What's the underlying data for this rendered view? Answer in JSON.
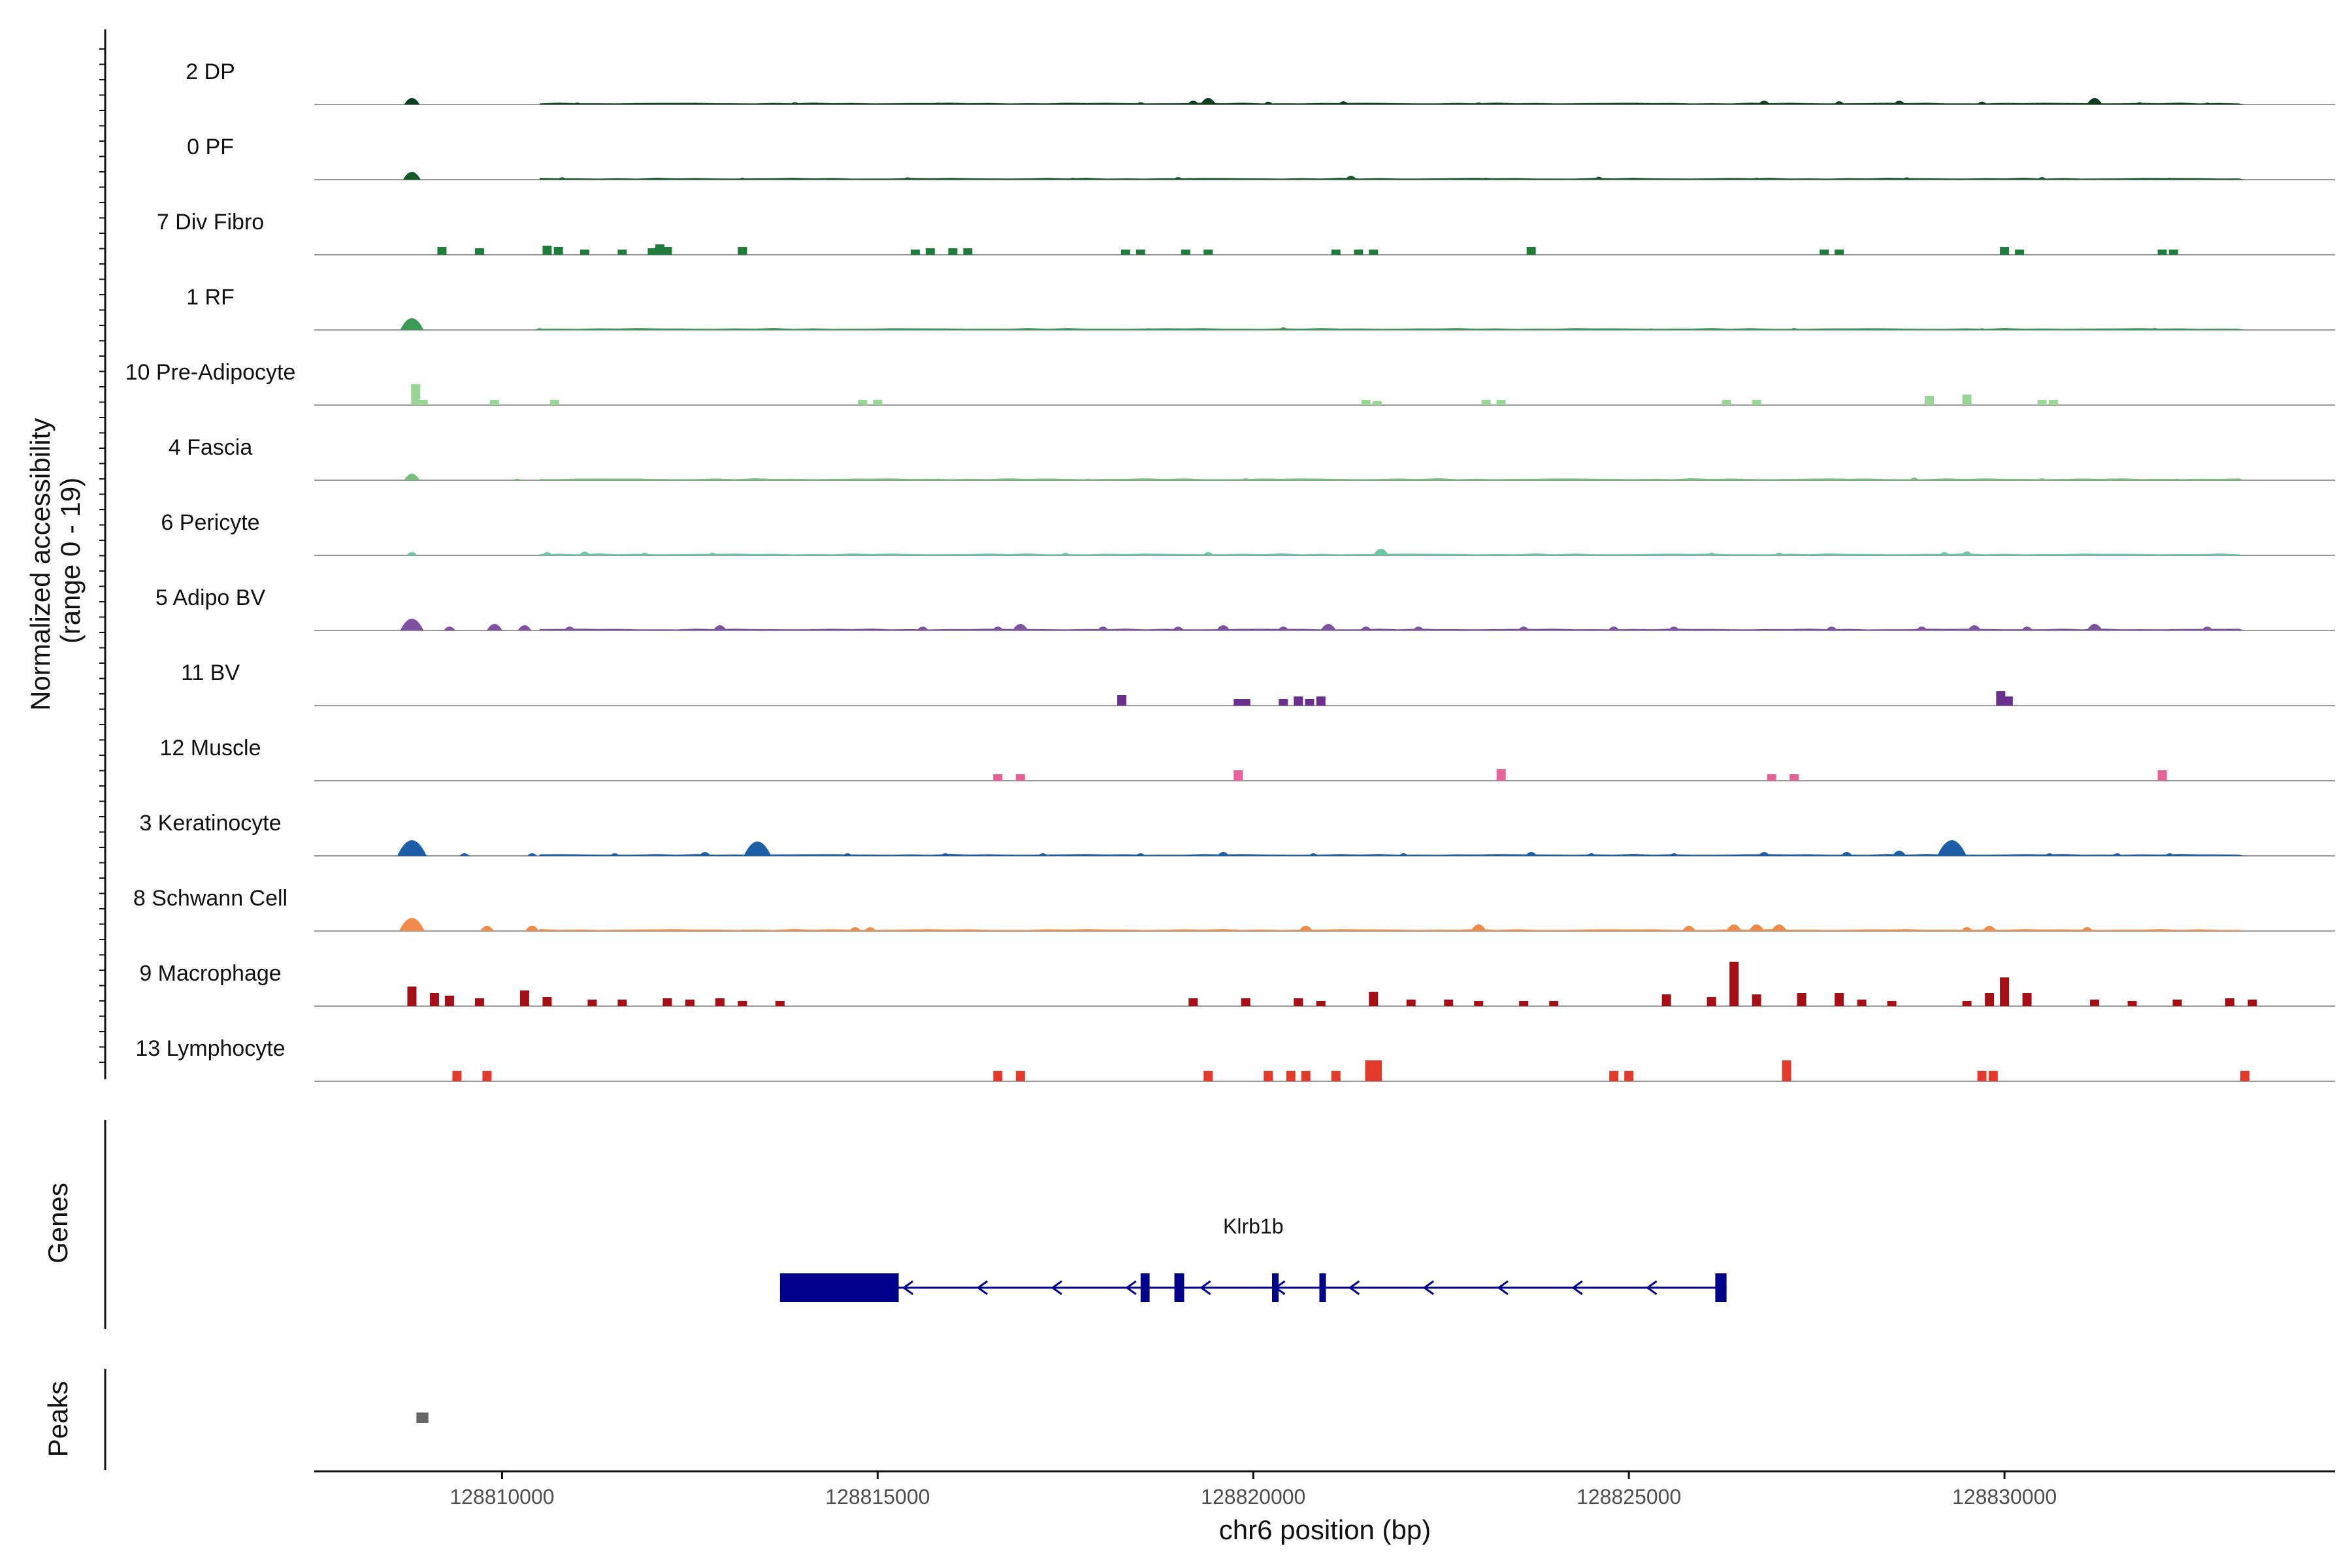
{
  "chart_data": {
    "type": "area",
    "region": {
      "chrom": "chr6",
      "start": 128807500,
      "end": 128834400
    },
    "y_axis_title": [
      "Normalized accessibility",
      "(range 0 - 19)"
    ],
    "y_range": [
      0,
      19
    ],
    "x_axis_title": "chr6 position (bp)",
    "x_ticks": [
      128810000,
      128815000,
      128820000,
      128825000,
      128830000
    ],
    "x_tick_labels": [
      "128810000",
      "128815000",
      "128820000",
      "128825000",
      "128830000"
    ],
    "tracks": [
      {
        "name": "2 DP",
        "color": "#0b3d1e",
        "style": "continuous",
        "peaks": [
          [
            128808800,
            5
          ],
          [
            128811000,
            1.5
          ],
          [
            128813900,
            1.8
          ],
          [
            128815800,
            1.5
          ],
          [
            128818500,
            1.8
          ],
          [
            128819200,
            3
          ],
          [
            128819400,
            5
          ],
          [
            128820200,
            2.2
          ],
          [
            128821200,
            2.5
          ],
          [
            128823000,
            1.6
          ],
          [
            128826800,
            3
          ],
          [
            128827800,
            2.5
          ],
          [
            128828600,
            3
          ],
          [
            128829700,
            2.2
          ],
          [
            128831200,
            5
          ],
          [
            128831800,
            1.8
          ],
          [
            128832700,
            1.5
          ]
        ]
      },
      {
        "name": "0 PF",
        "color": "#155a2b",
        "style": "continuous",
        "peaks": [
          [
            128808800,
            6
          ],
          [
            128810800,
            1.8
          ],
          [
            128813200,
            1.5
          ],
          [
            128815400,
            1.8
          ],
          [
            128817600,
            1.5
          ],
          [
            128819000,
            2
          ],
          [
            128821300,
            3
          ],
          [
            128823100,
            1.5
          ],
          [
            128824600,
            2.2
          ],
          [
            128826700,
            1.5
          ],
          [
            128828700,
            1.8
          ],
          [
            128830500,
            2
          ],
          [
            128832200,
            1.5
          ]
        ]
      },
      {
        "name": "7 Div Fibro",
        "color": "#207c3a",
        "style": "blocks",
        "peaks": [
          [
            128809200,
            6
          ],
          [
            128809700,
            5
          ],
          [
            128810600,
            7
          ],
          [
            128810750,
            6
          ],
          [
            128811100,
            4
          ],
          [
            128811600,
            4
          ],
          [
            128812000,
            5
          ],
          [
            128812100,
            8
          ],
          [
            128812200,
            6
          ],
          [
            128813200,
            6
          ],
          [
            128815500,
            4
          ],
          [
            128815700,
            5
          ],
          [
            128816000,
            5
          ],
          [
            128816200,
            5
          ],
          [
            128818300,
            4
          ],
          [
            128818500,
            4
          ],
          [
            128819100,
            4
          ],
          [
            128819400,
            4
          ],
          [
            128821100,
            4
          ],
          [
            128821400,
            4
          ],
          [
            128821600,
            4
          ],
          [
            128823700,
            6
          ],
          [
            128827600,
            4
          ],
          [
            128827800,
            4
          ],
          [
            128830000,
            6
          ],
          [
            128830200,
            4
          ],
          [
            128832100,
            4
          ],
          [
            128832250,
            4
          ]
        ]
      },
      {
        "name": "1 RF",
        "color": "#3c9a58",
        "style": "continuous",
        "peaks": [
          [
            128808800,
            9
          ],
          [
            128810500,
            1.3
          ],
          [
            128812400,
            1.2
          ],
          [
            128815900,
            1.2
          ],
          [
            128818600,
            1.3
          ],
          [
            128820400,
            2
          ],
          [
            128822700,
            1.2
          ],
          [
            128825300,
            1.2
          ],
          [
            128827200,
            1.5
          ],
          [
            128829700,
            1.3
          ],
          [
            128832000,
            1.5
          ]
        ]
      },
      {
        "name": "10 Pre-Adipocyte",
        "color": "#9ad497",
        "style": "blocks",
        "peaks": [
          [
            128808850,
            16
          ],
          [
            128808950,
            4
          ],
          [
            128809900,
            4
          ],
          [
            128810700,
            4
          ],
          [
            128814800,
            4
          ],
          [
            128815000,
            4
          ],
          [
            128821500,
            4
          ],
          [
            128821650,
            3
          ],
          [
            128823100,
            4
          ],
          [
            128823300,
            4
          ],
          [
            128826300,
            4
          ],
          [
            128826700,
            4
          ],
          [
            128829000,
            7
          ],
          [
            128829500,
            8
          ],
          [
            128830500,
            4
          ],
          [
            128830650,
            4
          ]
        ]
      },
      {
        "name": "4 Fascia",
        "color": "#78c07e",
        "style": "continuous",
        "peaks": [
          [
            128808800,
            5
          ],
          [
            128810200,
            1.2
          ],
          [
            128811300,
            1.4
          ],
          [
            128813500,
            1.2
          ],
          [
            128815800,
            1.2
          ],
          [
            128817800,
            1.2
          ],
          [
            128819900,
            1.5
          ],
          [
            128822500,
            1.4
          ],
          [
            128824400,
            1.2
          ],
          [
            128826500,
            1.2
          ],
          [
            128828800,
            2
          ],
          [
            128830500,
            1.5
          ],
          [
            128832300,
            1.2
          ]
        ]
      },
      {
        "name": "6 Pericyte",
        "color": "#6cc7a3",
        "style": "continuous",
        "peaks": [
          [
            128808800,
            2.5
          ],
          [
            128810600,
            2.5
          ],
          [
            128811100,
            2.8
          ],
          [
            128811900,
            2
          ],
          [
            128812800,
            2
          ],
          [
            128817500,
            2
          ],
          [
            128819400,
            2.5
          ],
          [
            128821700,
            5
          ],
          [
            128826100,
            2
          ],
          [
            128827000,
            2
          ],
          [
            128829200,
            2.5
          ],
          [
            128829500,
            3
          ]
        ]
      },
      {
        "name": "5 Adipo BV",
        "color": "#7e52a0",
        "style": "continuous",
        "peaks": [
          [
            128808800,
            9
          ],
          [
            128809300,
            3
          ],
          [
            128809900,
            5
          ],
          [
            128810300,
            4
          ],
          [
            128810900,
            3
          ],
          [
            128812900,
            4
          ],
          [
            128815600,
            3
          ],
          [
            128816600,
            3
          ],
          [
            128816900,
            5
          ],
          [
            128818000,
            3
          ],
          [
            128819000,
            3
          ],
          [
            128819600,
            4
          ],
          [
            128820400,
            3
          ],
          [
            128821000,
            5
          ],
          [
            128821500,
            3
          ],
          [
            128822200,
            3
          ],
          [
            128823600,
            3
          ],
          [
            128824800,
            3
          ],
          [
            128825600,
            3
          ],
          [
            128827700,
            3
          ],
          [
            128828900,
            3
          ],
          [
            128829600,
            4
          ],
          [
            128830300,
            3
          ],
          [
            128831200,
            5
          ],
          [
            128832700,
            3
          ]
        ]
      },
      {
        "name": "11 BV",
        "color": "#6a2e8c",
        "style": "blocks",
        "peaks": [
          [
            128818250,
            8
          ],
          [
            128819800,
            5
          ],
          [
            128819900,
            5
          ],
          [
            128820400,
            5
          ],
          [
            128820600,
            7
          ],
          [
            128820750,
            5
          ],
          [
            128820900,
            7
          ],
          [
            128829950,
            11
          ],
          [
            128830050,
            7
          ]
        ]
      },
      {
        "name": "12 Muscle",
        "color": "#e7619a",
        "style": "blocks",
        "peaks": [
          [
            128816600,
            5
          ],
          [
            128816900,
            5
          ],
          [
            128819800,
            8
          ],
          [
            128823300,
            9
          ],
          [
            128826900,
            5
          ],
          [
            128827200,
            5
          ],
          [
            128832100,
            8
          ]
        ]
      },
      {
        "name": "3 Keratinocyte",
        "color": "#1d5fa6",
        "style": "continuous",
        "peaks": [
          [
            128808800,
            12
          ],
          [
            128809500,
            2
          ],
          [
            128810400,
            2
          ],
          [
            128811500,
            2
          ],
          [
            128812700,
            3
          ],
          [
            128813400,
            11
          ],
          [
            128814600,
            2
          ],
          [
            128815900,
            2
          ],
          [
            128817200,
            2
          ],
          [
            128818500,
            2
          ],
          [
            128819600,
            3
          ],
          [
            128820800,
            2
          ],
          [
            128822000,
            2
          ],
          [
            128823700,
            3
          ],
          [
            128824500,
            2
          ],
          [
            128825600,
            2
          ],
          [
            128826800,
            3
          ],
          [
            128827900,
            3
          ],
          [
            128828600,
            4
          ],
          [
            128829300,
            12
          ],
          [
            128830600,
            2
          ],
          [
            128831500,
            2
          ],
          [
            128832200,
            2
          ]
        ]
      },
      {
        "name": "8 Schwann Cell",
        "color": "#f08a4a",
        "style": "continuous",
        "peaks": [
          [
            128808800,
            10
          ],
          [
            128809800,
            4
          ],
          [
            128810400,
            4
          ],
          [
            128814700,
            3
          ],
          [
            128814900,
            3
          ],
          [
            128820700,
            4
          ],
          [
            128823000,
            5
          ],
          [
            128825800,
            4
          ],
          [
            128826400,
            5
          ],
          [
            128826700,
            5
          ],
          [
            128827000,
            5
          ],
          [
            128829500,
            3
          ],
          [
            128829800,
            4
          ],
          [
            128831100,
            3
          ]
        ]
      },
      {
        "name": "9 Macrophage",
        "color": "#a50f15",
        "style": "blocks",
        "peaks": [
          [
            128808800,
            15
          ],
          [
            128809100,
            10
          ],
          [
            128809300,
            8
          ],
          [
            128809700,
            6
          ],
          [
            128810300,
            12
          ],
          [
            128810600,
            7
          ],
          [
            128811200,
            5
          ],
          [
            128811600,
            5
          ],
          [
            128812200,
            6
          ],
          [
            128812500,
            5
          ],
          [
            128812900,
            6
          ],
          [
            128813200,
            4
          ],
          [
            128813700,
            4
          ],
          [
            128819200,
            6
          ],
          [
            128819900,
            6
          ],
          [
            128820600,
            6
          ],
          [
            128820900,
            4
          ],
          [
            128821600,
            11
          ],
          [
            128822100,
            5
          ],
          [
            128822600,
            5
          ],
          [
            128823000,
            4
          ],
          [
            128823600,
            4
          ],
          [
            128824000,
            4
          ],
          [
            128825500,
            9
          ],
          [
            128826100,
            7
          ],
          [
            128826400,
            34
          ],
          [
            128826700,
            9
          ],
          [
            128827300,
            10
          ],
          [
            128827800,
            10
          ],
          [
            128828100,
            5
          ],
          [
            128828500,
            4
          ],
          [
            128829500,
            4
          ],
          [
            128829800,
            10
          ],
          [
            128830000,
            22
          ],
          [
            128830300,
            10
          ],
          [
            128831200,
            5
          ],
          [
            128831700,
            4
          ],
          [
            128832300,
            5
          ],
          [
            128833000,
            6
          ],
          [
            128833300,
            5
          ]
        ]
      },
      {
        "name": "13 Lymphocyte",
        "color": "#e43a2c",
        "style": "blocks",
        "peaks": [
          [
            128809400,
            8
          ],
          [
            128809800,
            8
          ],
          [
            128816600,
            8
          ],
          [
            128816900,
            8
          ],
          [
            128819400,
            8
          ],
          [
            128820200,
            8
          ],
          [
            128820500,
            8
          ],
          [
            128820700,
            8
          ],
          [
            128821100,
            8
          ],
          [
            128821550,
            16
          ],
          [
            128821650,
            16
          ],
          [
            128824800,
            8
          ],
          [
            128825000,
            8
          ],
          [
            128827100,
            16
          ],
          [
            128829700,
            8
          ],
          [
            128829850,
            8
          ],
          [
            128833200,
            8
          ]
        ]
      }
    ],
    "genes_title": "Genes",
    "gene": {
      "name": "Klrb1b",
      "strand": "-",
      "color": "#00008b",
      "span": [
        128813700,
        128826300
      ],
      "exons": [
        [
          128813700,
          128815280
        ],
        [
          128818500,
          128818620
        ],
        [
          128818950,
          128819080
        ],
        [
          128820250,
          128820320
        ],
        [
          128820880,
          128820960
        ],
        [
          128826150,
          128826300
        ]
      ]
    },
    "peaks_title": "Peaks",
    "peak_regions": [
      {
        "start": 128808860,
        "end": 128809020,
        "color": "#666666"
      }
    ]
  }
}
